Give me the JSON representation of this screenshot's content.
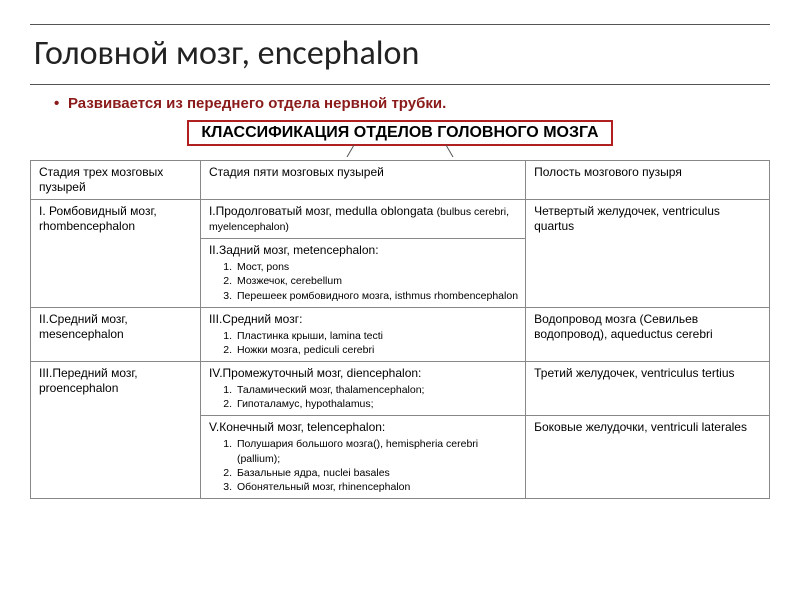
{
  "title": "Головной мозг, encephalon",
  "intro": "Развивается из переднего отдела нервной трубки.",
  "class_heading": "КЛАССИФИКАЦИЯ ОТДЕЛОВ ГОЛОВНОГО МОЗГА",
  "headers": {
    "c1": "Стадия трех мозговых пузырей",
    "c2": "Стадия пяти мозговых пузырей",
    "c3": "Полость мозгового пузыря"
  },
  "r1": {
    "c1": "I. Ромбовидный мозг, rhombencephalon",
    "c2a_main": "I.Продолговатый мозг, medulla oblongata ",
    "c2a_small": "(bulbus cerebri, myelencephalon)",
    "c2b_head": "II.Задний мозг, metencephalon:",
    "c2b_items": {
      "i1": "Мост, pons",
      "i2": "Мозжечок, cerebellum",
      "i3": "Перешеек ромбовидного мозга, isthmus rhombencephalon"
    },
    "c3": "Четвертый желудочек, ventriculus quartus"
  },
  "r2": {
    "c1": "II.Средний мозг, mesencephalon",
    "c2_head": "III.Средний мозг:",
    "c2_items": {
      "i1": "Пластинка крыши, lamina tecti",
      "i2": "Ножки мозга, pediculi cerebri"
    },
    "c3": "Водопровод мозга (Севильев водопровод), aqueductus cerebri"
  },
  "r3": {
    "c1": "III.Передний мозг, proencephalon",
    "c2a_head": "IV.Промежуточный мозг,  diencephalon:",
    "c2a_items": {
      "i1": "Таламический мозг, thalamencephalon;",
      "i2": "Гипоталамус, hypothalamus;"
    },
    "c2b_head": "V.Конечный мозг, telencephalon:",
    "c2b_items": {
      "i1": "Полушария большого мозга(), hemispheria cerebri (pallium);",
      "i2": "Базальные ядра, nuclei basales",
      "i3": "Обонятельный мозг,  rhinencephalon"
    },
    "c3a": "Третий желудочек, ventriculus tertius",
    "c3b": "Боковые желудочки, ventriculi laterales"
  },
  "colors": {
    "accent": "#8b1a1a",
    "box_border": "#b02020",
    "rule": "#555555",
    "cell_border": "#888888",
    "bg": "#ffffff",
    "text": "#000000"
  },
  "typography": {
    "title_pt": 34,
    "intro_pt": 15,
    "class_heading_pt": 16,
    "table_pt": 12,
    "sublist_pt": 10.5
  }
}
